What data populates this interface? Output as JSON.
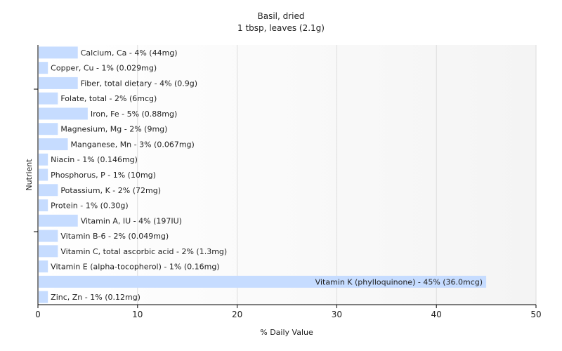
{
  "chart_data": {
    "type": "bar",
    "orientation": "horizontal",
    "title": "Basil, dried",
    "subtitle": "1 tbsp, leaves (2.1g)",
    "xlabel": "% Daily Value",
    "ylabel": "Nutrient",
    "xlim": [
      0,
      50
    ],
    "xticks": [
      0,
      10,
      20,
      30,
      40,
      50
    ],
    "grid": true,
    "colors": {
      "bar": "#c6dcff",
      "grid": "#dddddd",
      "axis": "#000000"
    },
    "categories": [
      "Calcium, Ca",
      "Copper, Cu",
      "Fiber, total dietary",
      "Folate, total",
      "Iron, Fe",
      "Magnesium, Mg",
      "Manganese, Mn",
      "Niacin",
      "Phosphorus, P",
      "Potassium, K",
      "Protein",
      "Vitamin A, IU",
      "Vitamin B-6",
      "Vitamin C, total ascorbic acid",
      "Vitamin E (alpha-tocopherol)",
      "Vitamin K (phylloquinone)",
      "Zinc, Zn"
    ],
    "values": [
      4,
      1,
      4,
      2,
      5,
      2,
      3,
      1,
      1,
      2,
      1,
      4,
      2,
      2,
      1,
      45,
      1
    ],
    "labels": [
      "Calcium, Ca - 4% (44mg)",
      "Copper, Cu - 1% (0.029mg)",
      "Fiber, total dietary - 4% (0.9g)",
      "Folate, total - 2% (6mcg)",
      "Iron, Fe - 5% (0.88mg)",
      "Magnesium, Mg - 2% (9mg)",
      "Manganese, Mn - 3% (0.067mg)",
      "Niacin - 1% (0.146mg)",
      "Phosphorus, P - 1% (10mg)",
      "Potassium, K - 2% (72mg)",
      "Protein - 1% (0.30g)",
      "Vitamin A, IU - 4% (197IU)",
      "Vitamin B-6 - 2% (0.049mg)",
      "Vitamin C, total ascorbic acid - 2% (1.3mg)",
      "Vitamin E (alpha-tocopherol) - 1% (0.16mg)",
      "Vitamin K (phylloquinone) - 45% (36.0mcg)",
      "Zinc, Zn - 1% (0.12mg)"
    ]
  }
}
